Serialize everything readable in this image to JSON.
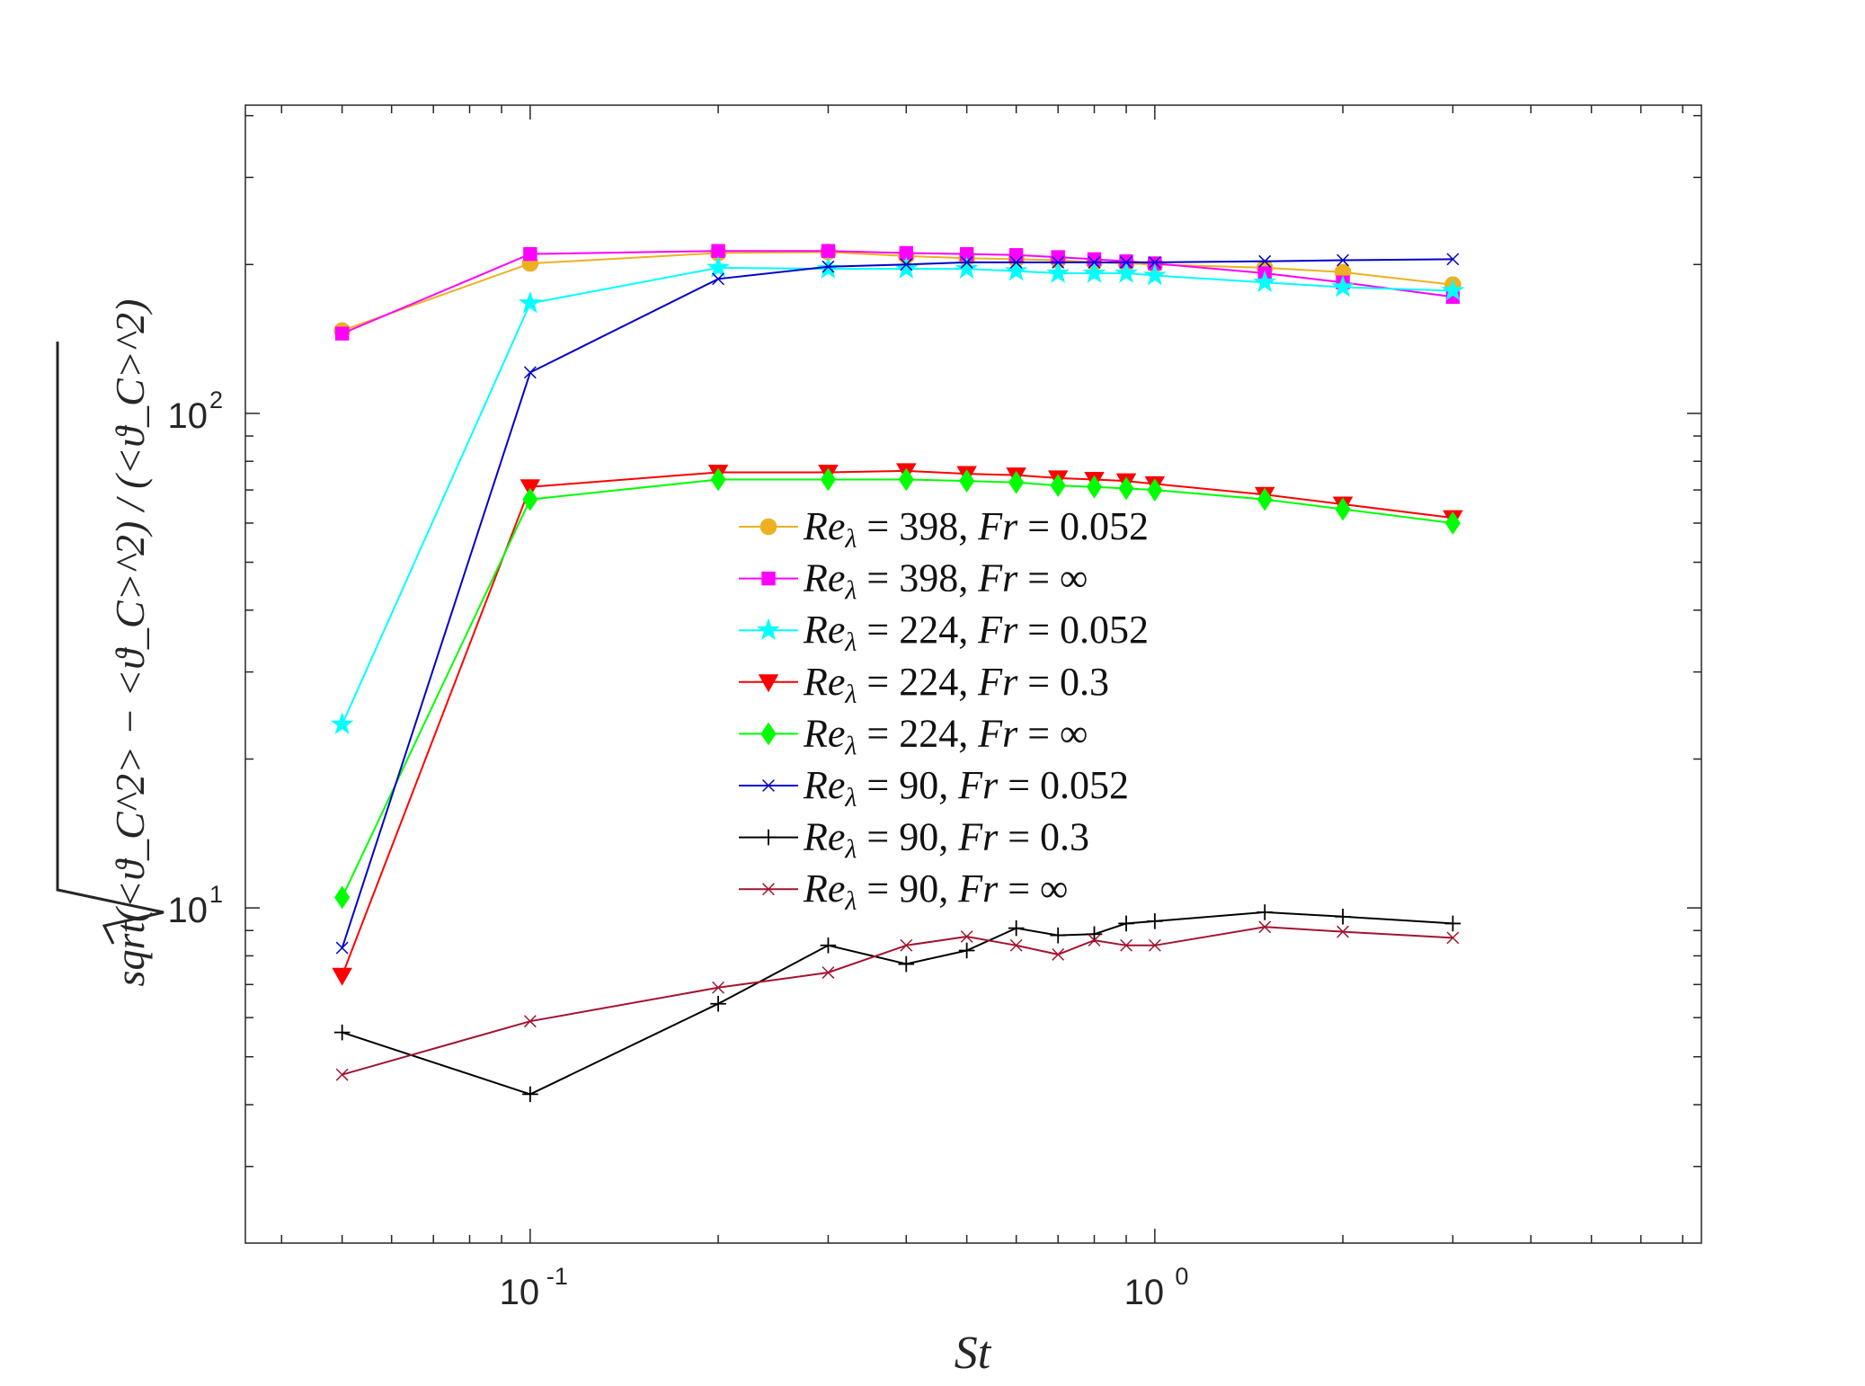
{
  "chart_data": {
    "type": "line",
    "title": "",
    "xlabel": "St",
    "ylabel": "sqrt(<ϑ_C^2> − <ϑ_C>^2) / (<ϑ_C>^2)",
    "xscale": "log",
    "yscale": "log",
    "xlim": [
      0.035,
      7.5
    ],
    "ylim": [
      2.1,
      420
    ],
    "x_ticks": [
      {
        "value": 0.1,
        "base": "10",
        "exp": "-1"
      },
      {
        "value": 1,
        "base": "10",
        "exp": "0"
      }
    ],
    "y_ticks": [
      {
        "value": 10,
        "base": "10",
        "exp": "1"
      },
      {
        "value": 100,
        "base": "10",
        "exp": "2"
      }
    ],
    "legend_position": "center",
    "series": [
      {
        "name": "Re_λ = 398, Fr = 0.052",
        "label_re": "398",
        "label_fr": "0.052",
        "color": "#EDB120",
        "marker": "circle",
        "x": [
          0.05,
          0.1,
          0.2,
          0.3,
          0.4,
          0.5,
          0.6,
          0.7,
          0.8,
          0.9,
          1.0,
          1.5,
          2.0,
          3.0
        ],
        "y": [
          147,
          201,
          211,
          212,
          208,
          206,
          205,
          204,
          202,
          201,
          200,
          197,
          193,
          182
        ]
      },
      {
        "name": "Re_λ = 398, Fr = ∞",
        "label_re": "398",
        "label_fr": "∞",
        "color": "#FF00FF",
        "marker": "square",
        "x": [
          0.05,
          0.1,
          0.2,
          0.3,
          0.4,
          0.5,
          0.6,
          0.7,
          0.8,
          0.9,
          1.0,
          1.5,
          2.0,
          3.0
        ],
        "y": [
          145,
          210,
          213,
          213,
          211,
          210,
          209,
          207,
          205,
          203,
          201,
          192,
          184,
          172
        ]
      },
      {
        "name": "Re_λ = 224, Fr = 0.052",
        "label_re": "224",
        "label_fr": "0.052",
        "color": "#00FFFF",
        "marker": "star",
        "x": [
          0.05,
          0.1,
          0.2,
          0.3,
          0.4,
          0.5,
          0.6,
          0.7,
          0.8,
          0.9,
          1.0,
          1.5,
          2.0,
          3.0
        ],
        "y": [
          23.5,
          167,
          197,
          196,
          196,
          196,
          194,
          192,
          192,
          192,
          190,
          184,
          180,
          177
        ]
      },
      {
        "name": "Re_λ = 224, Fr = 0.3",
        "label_re": "224",
        "label_fr": "0.3",
        "color": "#FF0000",
        "marker": "triangle-down",
        "x": [
          0.05,
          0.1,
          0.2,
          0.3,
          0.4,
          0.5,
          0.6,
          0.7,
          0.8,
          0.9,
          1.0,
          1.5,
          2.0,
          3.0
        ],
        "y": [
          7.3,
          71,
          76,
          76,
          76.5,
          75.5,
          75,
          74,
          73.5,
          73,
          72,
          68.5,
          65.5,
          61.5
        ]
      },
      {
        "name": "Re_λ = 224, Fr = ∞",
        "label_re": "224",
        "label_fr": "∞",
        "color": "#00FF00",
        "marker": "diamond",
        "x": [
          0.05,
          0.1,
          0.2,
          0.3,
          0.4,
          0.5,
          0.6,
          0.7,
          0.8,
          0.9,
          1.0,
          1.5,
          2.0,
          3.0
        ],
        "y": [
          10.5,
          67,
          73.5,
          73.5,
          73.5,
          73,
          72.5,
          71.5,
          71,
          70.5,
          70,
          67,
          64,
          60
        ]
      },
      {
        "name": "Re_λ = 90, Fr = 0.052",
        "label_re": "90",
        "label_fr": "0.052",
        "color": "#0000CC",
        "marker": "x",
        "x": [
          0.05,
          0.1,
          0.2,
          0.3,
          0.4,
          0.5,
          0.6,
          0.7,
          0.8,
          0.9,
          1.0,
          1.5,
          2.0,
          3.0
        ],
        "y": [
          8.3,
          121,
          187,
          198,
          200,
          202,
          202,
          202,
          202,
          202,
          202,
          203,
          204,
          205
        ]
      },
      {
        "name": "Re_λ = 90, Fr = 0.3",
        "label_re": "90",
        "label_fr": "0.3",
        "color": "#000000",
        "marker": "plus",
        "x": [
          0.05,
          0.1,
          0.2,
          0.3,
          0.4,
          0.5,
          0.6,
          0.7,
          0.8,
          0.9,
          1.0,
          1.5,
          2.0,
          3.0
        ],
        "y": [
          5.6,
          4.2,
          6.4,
          8.4,
          7.7,
          8.2,
          9.1,
          8.8,
          8.85,
          9.3,
          9.4,
          9.8,
          9.6,
          9.3
        ]
      },
      {
        "name": "Re_λ = 90, Fr = ∞",
        "label_re": "90",
        "label_fr": "∞",
        "color": "#A2142F",
        "marker": "x",
        "x": [
          0.05,
          0.1,
          0.2,
          0.3,
          0.4,
          0.5,
          0.6,
          0.7,
          0.8,
          0.9,
          1.0,
          1.5,
          2.0,
          3.0
        ],
        "y": [
          4.6,
          5.9,
          6.9,
          7.4,
          8.4,
          8.75,
          8.4,
          8.05,
          8.6,
          8.4,
          8.4,
          9.15,
          8.95,
          8.7
        ]
      }
    ]
  }
}
